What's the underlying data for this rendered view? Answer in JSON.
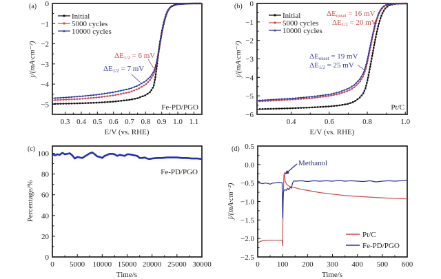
{
  "chart_data": [
    {
      "id": "a",
      "type": "line",
      "panel_label": "(a)",
      "title": "",
      "xlabel": "E/V (vs. RHE)",
      "ylabel": "j/(mA·cm⁻²)",
      "xlim": [
        0.22,
        1.15
      ],
      "ylim": [
        -5.5,
        0
      ],
      "xticks": [
        0.3,
        0.4,
        0.5,
        0.6,
        0.7,
        0.8,
        0.9,
        1.0,
        1.1
      ],
      "xtick_labels": [
        "0.3",
        "0.4",
        "0.5",
        "0.6",
        "0.7",
        "0.8",
        "0.9",
        "1.0",
        "1.1"
      ],
      "yticks": [
        0,
        -1,
        -2,
        -3,
        -4,
        -5
      ],
      "ytick_labels": [
        "0",
        "−1",
        "−2",
        "−3",
        "−4",
        "−5"
      ],
      "legend": {
        "placement": "top-left",
        "entries": [
          "Initial",
          "5000 cycles",
          "10000 cycles"
        ]
      },
      "sample_label": "Fe-PD/PGO",
      "annotations": [
        {
          "text_prefix": "ΔE",
          "subscript": "1/2",
          "text_suffix": " = 6 mV",
          "color": "#c0504d"
        },
        {
          "text_prefix": "ΔE",
          "subscript": "1/2",
          "text_suffix": " = 7 mV",
          "color": "#3a3fa0"
        }
      ],
      "series": [
        {
          "name": "Initial",
          "color": "#111111",
          "marker": "square",
          "x": [
            0.22,
            0.3,
            0.4,
            0.5,
            0.6,
            0.7,
            0.75,
            0.8,
            0.83,
            0.85,
            0.86,
            0.87,
            0.88,
            0.89,
            0.9,
            0.91,
            0.92,
            0.93,
            0.94,
            0.95,
            0.96,
            0.98,
            1.0,
            1.05,
            1.1,
            1.15
          ],
          "y": [
            -4.98,
            -4.97,
            -4.95,
            -4.92,
            -4.87,
            -4.78,
            -4.7,
            -4.55,
            -4.38,
            -4.1,
            -3.7,
            -3.1,
            -2.45,
            -1.9,
            -1.45,
            -1.05,
            -0.75,
            -0.5,
            -0.33,
            -0.22,
            -0.15,
            -0.08,
            -0.04,
            -0.01,
            0.0,
            0.0
          ]
        },
        {
          "name": "5000 cycles",
          "color": "#c0504d",
          "marker": "circle",
          "x": [
            0.22,
            0.3,
            0.4,
            0.5,
            0.6,
            0.7,
            0.75,
            0.8,
            0.83,
            0.85,
            0.86,
            0.87,
            0.88,
            0.89,
            0.9,
            0.91,
            0.92,
            0.93,
            0.94,
            0.95,
            0.96,
            0.98,
            1.0,
            1.05,
            1.1,
            1.15
          ],
          "y": [
            -4.8,
            -4.77,
            -4.73,
            -4.66,
            -4.56,
            -4.4,
            -4.25,
            -4.02,
            -3.78,
            -3.5,
            -3.25,
            -2.9,
            -2.45,
            -1.95,
            -1.5,
            -1.1,
            -0.78,
            -0.52,
            -0.34,
            -0.23,
            -0.15,
            -0.08,
            -0.04,
            -0.01,
            0.0,
            0.0
          ]
        },
        {
          "name": "10000 cycles",
          "color": "#2b2f9a",
          "marker": "triangle",
          "x": [
            0.22,
            0.3,
            0.4,
            0.5,
            0.6,
            0.7,
            0.75,
            0.8,
            0.83,
            0.85,
            0.86,
            0.87,
            0.88,
            0.89,
            0.9,
            0.91,
            0.92,
            0.93,
            0.94,
            0.95,
            0.96,
            0.98,
            1.0,
            1.05,
            1.1,
            1.15
          ],
          "y": [
            -4.7,
            -4.66,
            -4.6,
            -4.52,
            -4.4,
            -4.23,
            -4.08,
            -3.85,
            -3.62,
            -3.38,
            -3.15,
            -2.82,
            -2.4,
            -1.93,
            -1.48,
            -1.08,
            -0.76,
            -0.5,
            -0.32,
            -0.21,
            -0.14,
            -0.07,
            -0.03,
            -0.01,
            0.0,
            0.0
          ]
        }
      ]
    },
    {
      "id": "b",
      "type": "line",
      "panel_label": "(b)",
      "title": "",
      "xlabel": "E/V (vs. RHE)",
      "ylabel": "j/(mA·cm⁻²)",
      "xlim": [
        0.22,
        1.01
      ],
      "ylim": [
        -6,
        0
      ],
      "xticks": [
        0.4,
        0.6,
        0.8,
        1.0
      ],
      "xtick_labels": [
        "0.4",
        "0.6",
        "0.8",
        "1.0"
      ],
      "yticks": [
        0,
        -1,
        -2,
        -3,
        -4,
        -5,
        -6
      ],
      "ytick_labels": [
        "0",
        "−1",
        "−2",
        "−3",
        "−4",
        "−5",
        "−6"
      ],
      "legend": {
        "placement": "top-left",
        "entries": [
          "Initial",
          "5000 cycles",
          "10000 cycles"
        ]
      },
      "sample_label": "Pt/C",
      "annotations": [
        {
          "lines": [
            {
              "text_prefix": "ΔE",
              "subscript": "onset",
              "text_suffix": " = 16 mV"
            },
            {
              "text_prefix": "ΔE",
              "subscript": "1/2",
              "text_suffix": " = 20 mV"
            }
          ],
          "color": "#c0504d"
        },
        {
          "lines": [
            {
              "text_prefix": "ΔE",
              "subscript": "onset",
              "text_suffix": " = 19 mV"
            },
            {
              "text_prefix": "ΔE",
              "subscript": "1/2",
              "text_suffix": " = 25 mV"
            }
          ],
          "color": "#3a3fa0"
        }
      ],
      "series": [
        {
          "name": "Initial",
          "color": "#111111",
          "marker": "square",
          "x": [
            0.22,
            0.3,
            0.4,
            0.5,
            0.6,
            0.65,
            0.7,
            0.73,
            0.76,
            0.78,
            0.79,
            0.8,
            0.81,
            0.82,
            0.83,
            0.84,
            0.85,
            0.86,
            0.87,
            0.88,
            0.89,
            0.9,
            0.92,
            0.95,
            1.01
          ],
          "y": [
            -5.72,
            -5.7,
            -5.67,
            -5.63,
            -5.57,
            -5.52,
            -5.43,
            -5.32,
            -5.1,
            -4.85,
            -4.6,
            -4.2,
            -3.7,
            -3.15,
            -2.6,
            -2.05,
            -1.55,
            -1.12,
            -0.78,
            -0.52,
            -0.33,
            -0.2,
            -0.08,
            -0.02,
            0.0
          ]
        },
        {
          "name": "5000 cycles",
          "color": "#c0504d",
          "marker": "circle",
          "x": [
            0.22,
            0.3,
            0.4,
            0.5,
            0.6,
            0.65,
            0.7,
            0.73,
            0.76,
            0.78,
            0.79,
            0.8,
            0.81,
            0.82,
            0.83,
            0.84,
            0.85,
            0.86,
            0.87,
            0.88,
            0.89,
            0.9,
            0.92,
            0.95,
            1.01
          ],
          "y": [
            -5.3,
            -5.26,
            -5.2,
            -5.13,
            -5.0,
            -4.9,
            -4.72,
            -4.55,
            -4.25,
            -3.9,
            -3.6,
            -3.2,
            -2.7,
            -2.2,
            -1.7,
            -1.25,
            -0.88,
            -0.58,
            -0.37,
            -0.23,
            -0.14,
            -0.08,
            -0.03,
            -0.01,
            0.0
          ]
        },
        {
          "name": "10000 cycles",
          "color": "#2b2f9a",
          "marker": "triangle",
          "x": [
            0.22,
            0.3,
            0.4,
            0.5,
            0.6,
            0.65,
            0.7,
            0.73,
            0.76,
            0.78,
            0.79,
            0.8,
            0.81,
            0.82,
            0.83,
            0.84,
            0.85,
            0.86,
            0.87,
            0.88,
            0.89,
            0.9,
            0.92,
            0.95,
            1.01
          ],
          "y": [
            -5.25,
            -5.2,
            -5.14,
            -5.05,
            -4.92,
            -4.8,
            -4.6,
            -4.42,
            -4.1,
            -3.75,
            -3.45,
            -3.05,
            -2.55,
            -2.05,
            -1.58,
            -1.15,
            -0.8,
            -0.52,
            -0.33,
            -0.2,
            -0.12,
            -0.07,
            -0.03,
            -0.01,
            0.0
          ]
        }
      ]
    },
    {
      "id": "c",
      "type": "line",
      "panel_label": "(c)",
      "title": "",
      "xlabel": "Time/s",
      "ylabel": "Percentage/%",
      "xlim": [
        0,
        30000
      ],
      "ylim": [
        0,
        107
      ],
      "xticks": [
        0,
        5000,
        10000,
        15000,
        20000,
        25000,
        30000
      ],
      "xtick_labels": [
        "0",
        "5000",
        "10000",
        "15000",
        "20000",
        "25000",
        "30000"
      ],
      "yticks": [
        0,
        20,
        40,
        60,
        80,
        100
      ],
      "ytick_labels": [
        "0",
        "20",
        "40",
        "60",
        "80",
        "100"
      ],
      "sample_label": "Fe-PD/PGO",
      "series": [
        {
          "name": "Fe-PD/PGO",
          "color": "#1f2fb0",
          "x": [
            0,
            500,
            1000,
            1500,
            2000,
            2500,
            3000,
            3500,
            4000,
            4500,
            5000,
            5500,
            6000,
            6500,
            7000,
            7500,
            8000,
            8500,
            9000,
            9500,
            10000,
            10500,
            11000,
            11500,
            12000,
            12500,
            13000,
            13500,
            14000,
            14500,
            15000,
            15500,
            16000,
            16500,
            17000,
            17500,
            18000,
            18500,
            19000,
            19500,
            20000,
            21000,
            22000,
            23000,
            24000,
            25000,
            26000,
            27000,
            28000,
            29000,
            30000
          ],
          "y": [
            99,
            98,
            99,
            98.5,
            100.5,
            99,
            99.5,
            100,
            98,
            95,
            96.5,
            96,
            95.5,
            97,
            98.5,
            100,
            100.8,
            99,
            97,
            96.5,
            95.5,
            97.5,
            98.5,
            99.5,
            99.5,
            99,
            97.5,
            98.5,
            98,
            97.5,
            99,
            99,
            98.5,
            98,
            97.5,
            95.5,
            95.5,
            96,
            95,
            94.5,
            95,
            95.5,
            95.5,
            96,
            96,
            96,
            95.5,
            95.5,
            95,
            95,
            94.5
          ]
        }
      ]
    },
    {
      "id": "d",
      "type": "line",
      "panel_label": "(d)",
      "title": "",
      "xlabel": "Time/s",
      "ylabel": "j/(mA·cm⁻²)",
      "xlim": [
        0,
        600
      ],
      "ylim": [
        -2.5,
        0.5
      ],
      "xticks": [
        0,
        100,
        200,
        300,
        400,
        500,
        600
      ],
      "xtick_labels": [
        "0",
        "100",
        "200",
        "300",
        "400",
        "500",
        "600"
      ],
      "yticks": [
        0.5,
        0.0,
        -0.5,
        -1.0,
        -1.5,
        -2.0,
        -2.5
      ],
      "ytick_labels": [
        "0.5",
        "0.0",
        "−0.5",
        "−1.0",
        "−1.5",
        "−2.0",
        "−2.5"
      ],
      "legend": {
        "placement": "bottom-right",
        "entries": [
          "Pt/C",
          "Fe-PD/PGO"
        ]
      },
      "annotations": [
        {
          "text": "Methanol",
          "arrow": true,
          "color": "#2b2f7a"
        }
      ],
      "series": [
        {
          "name": "Pt/C",
          "color": "#c0504d",
          "x": [
            0,
            5,
            10,
            20,
            40,
            60,
            80,
            98,
            100,
            101,
            103,
            105,
            107,
            110,
            115,
            120,
            130,
            150,
            175,
            200,
            250,
            300,
            350,
            400,
            450,
            500,
            550,
            600
          ],
          "y": [
            -2.15,
            -2.1,
            -2.08,
            -2.06,
            -2.05,
            -2.05,
            -2.05,
            -2.05,
            -2.2,
            -1.6,
            -0.8,
            -0.3,
            -0.22,
            -0.45,
            -0.52,
            -0.56,
            -0.6,
            -0.63,
            -0.67,
            -0.7,
            -0.76,
            -0.8,
            -0.84,
            -0.86,
            -0.88,
            -0.9,
            -0.92,
            -0.93
          ]
        },
        {
          "name": "Fe-PD/PGO",
          "color": "#2b2f9a",
          "x": [
            0,
            5,
            10,
            20,
            30,
            40,
            50,
            60,
            70,
            80,
            90,
            98,
            100,
            101,
            103,
            106,
            110,
            115,
            120,
            125,
            130,
            135,
            140,
            145,
            150,
            175,
            200,
            225,
            250,
            275,
            300,
            325,
            350,
            375,
            400,
            425,
            450,
            475,
            500,
            525,
            550,
            575,
            600
          ],
          "y": [
            -0.48,
            -0.46,
            -0.5,
            -0.52,
            -0.5,
            -0.51,
            -0.53,
            -0.5,
            -0.5,
            -0.48,
            -0.49,
            -0.49,
            -1.45,
            -1.0,
            -0.75,
            -0.7,
            -0.68,
            -0.7,
            -0.64,
            -0.68,
            -0.62,
            -0.64,
            -0.5,
            -0.44,
            -0.45,
            -0.44,
            -0.46,
            -0.44,
            -0.45,
            -0.44,
            -0.45,
            -0.43,
            -0.45,
            -0.44,
            -0.45,
            -0.46,
            -0.44,
            -0.47,
            -0.45,
            -0.44,
            -0.45,
            -0.44,
            -0.42
          ]
        }
      ]
    }
  ]
}
